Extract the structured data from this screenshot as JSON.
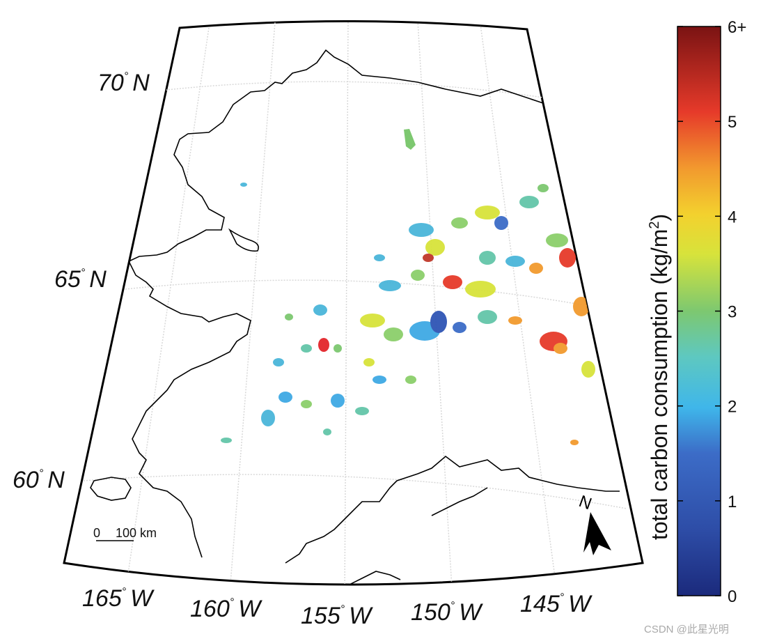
{
  "map": {
    "latitude_labels": [
      {
        "deg": "70",
        "hemi": "N"
      },
      {
        "deg": "65",
        "hemi": "N"
      },
      {
        "deg": "60",
        "hemi": "N"
      }
    ],
    "longitude_labels": [
      {
        "deg": "165",
        "hemi": "W"
      },
      {
        "deg": "160",
        "hemi": "W"
      },
      {
        "deg": "155",
        "hemi": "W"
      },
      {
        "deg": "150",
        "hemi": "W"
      },
      {
        "deg": "145",
        "hemi": "W"
      }
    ],
    "scale_bar": {
      "zero": "0",
      "value": "100 km"
    },
    "north_arrow": "N"
  },
  "colorbar": {
    "title_main": "total carbon consumption (kg/m",
    "title_sup": "2",
    "title_close": ")",
    "ticks": [
      "0",
      "1",
      "2",
      "3",
      "4",
      "5",
      "6+"
    ],
    "colors": [
      "#1b2a7c",
      "#2f55b5",
      "#3fa9e4",
      "#64c6a9",
      "#e9e93a",
      "#f08a2c",
      "#e3252b",
      "#7a1313"
    ]
  },
  "watermark": "CSDN @此星光明"
}
